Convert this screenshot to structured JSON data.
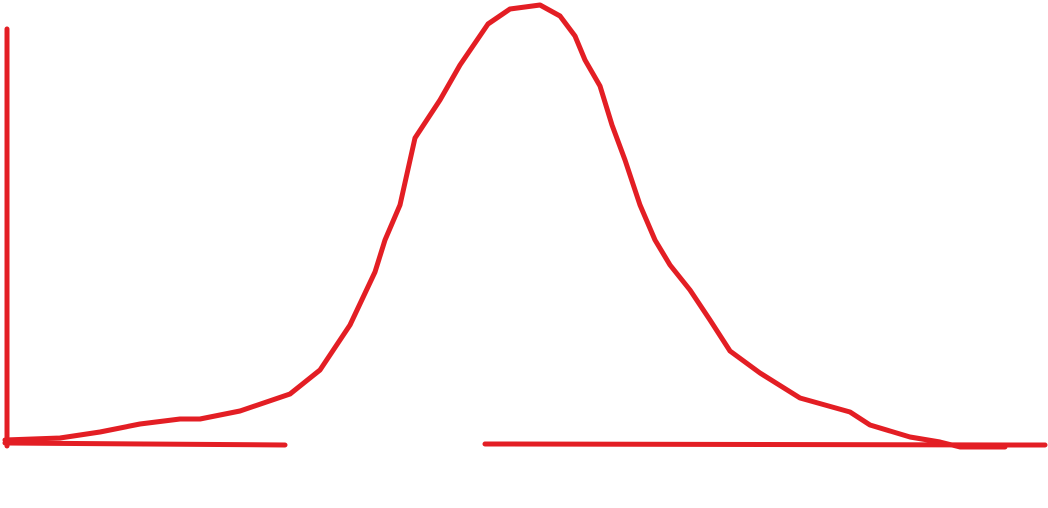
{
  "diagram": {
    "kind": "hand-drawn bell curve",
    "stroke_color": "#e31e24",
    "background_color": "#ffffff"
  }
}
